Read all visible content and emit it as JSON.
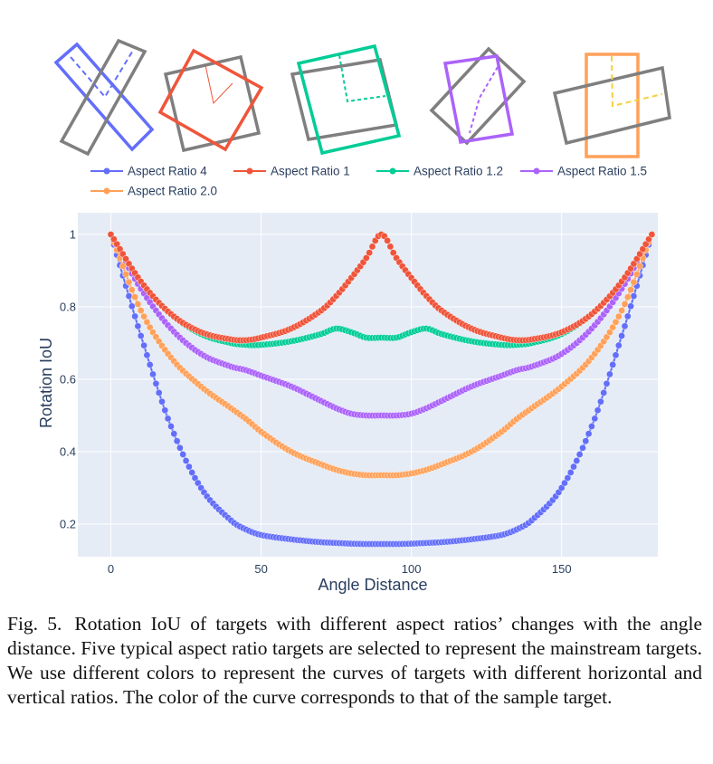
{
  "caption": {
    "label": "Fig. 5.",
    "text": "Rotation IoU of targets with different aspect ratios’ changes with the angle distance. Five typical aspect ratio targets are selected to represent the mainstream targets. We use different colors to represent the curves of targets with different horizontal and vertical ratios. The color of the curve corresponds to that of the sample target."
  },
  "chart_data": {
    "type": "scatter",
    "xlabel": "Angle Distance",
    "ylabel": "Rotation IoU",
    "xlim": [
      -11,
      182
    ],
    "ylim": [
      0.11,
      1.06
    ],
    "xticks": [
      0,
      50,
      100,
      150
    ],
    "yticks": [
      0.2,
      0.4,
      0.6,
      0.8,
      1
    ],
    "grid": true,
    "legend_position": "top",
    "background": "#e5ecf6",
    "x": [
      0,
      10,
      20,
      30,
      40,
      45,
      50,
      60,
      70,
      75,
      80,
      85,
      90,
      95,
      100,
      105,
      110,
      120,
      130,
      135,
      140,
      150,
      160,
      170,
      180
    ],
    "series": [
      {
        "name": "Aspect Ratio 4",
        "color": "#636efa",
        "values": [
          1.0,
          0.72,
          0.47,
          0.3,
          0.21,
          0.185,
          0.17,
          0.158,
          0.15,
          0.148,
          0.146,
          0.145,
          0.145,
          0.145,
          0.146,
          0.148,
          0.15,
          0.158,
          0.17,
          0.185,
          0.21,
          0.3,
          0.47,
          0.72,
          1.0
        ]
      },
      {
        "name": "Aspect Ratio 1",
        "color": "#ef553b",
        "values": [
          1.0,
          0.87,
          0.78,
          0.73,
          0.71,
          0.708,
          0.715,
          0.74,
          0.79,
          0.83,
          0.88,
          0.935,
          1.0,
          0.935,
          0.88,
          0.83,
          0.79,
          0.74,
          0.715,
          0.708,
          0.71,
          0.73,
          0.78,
          0.87,
          1.0
        ]
      },
      {
        "name": "Aspect Ratio 1.2",
        "color": "#00cc96",
        "values": [
          1.0,
          0.87,
          0.78,
          0.725,
          0.7,
          0.695,
          0.695,
          0.705,
          0.725,
          0.74,
          0.73,
          0.715,
          0.715,
          0.715,
          0.73,
          0.74,
          0.725,
          0.705,
          0.695,
          0.695,
          0.7,
          0.725,
          0.78,
          0.87,
          1.0
        ]
      },
      {
        "name": "Aspect Ratio 1.5",
        "color": "#ab63fa",
        "values": [
          1.0,
          0.85,
          0.74,
          0.67,
          0.635,
          0.625,
          0.61,
          0.58,
          0.54,
          0.52,
          0.505,
          0.5,
          0.5,
          0.5,
          0.505,
          0.52,
          0.54,
          0.58,
          0.61,
          0.625,
          0.635,
          0.67,
          0.74,
          0.85,
          1.0
        ]
      },
      {
        "name": "Aspect Ratio 2.0",
        "color": "#ffa15a",
        "values": [
          1.0,
          0.79,
          0.66,
          0.58,
          0.52,
          0.49,
          0.455,
          0.4,
          0.365,
          0.35,
          0.34,
          0.335,
          0.335,
          0.335,
          0.34,
          0.35,
          0.365,
          0.4,
          0.455,
          0.49,
          0.52,
          0.58,
          0.66,
          0.79,
          1.0
        ]
      }
    ]
  }
}
